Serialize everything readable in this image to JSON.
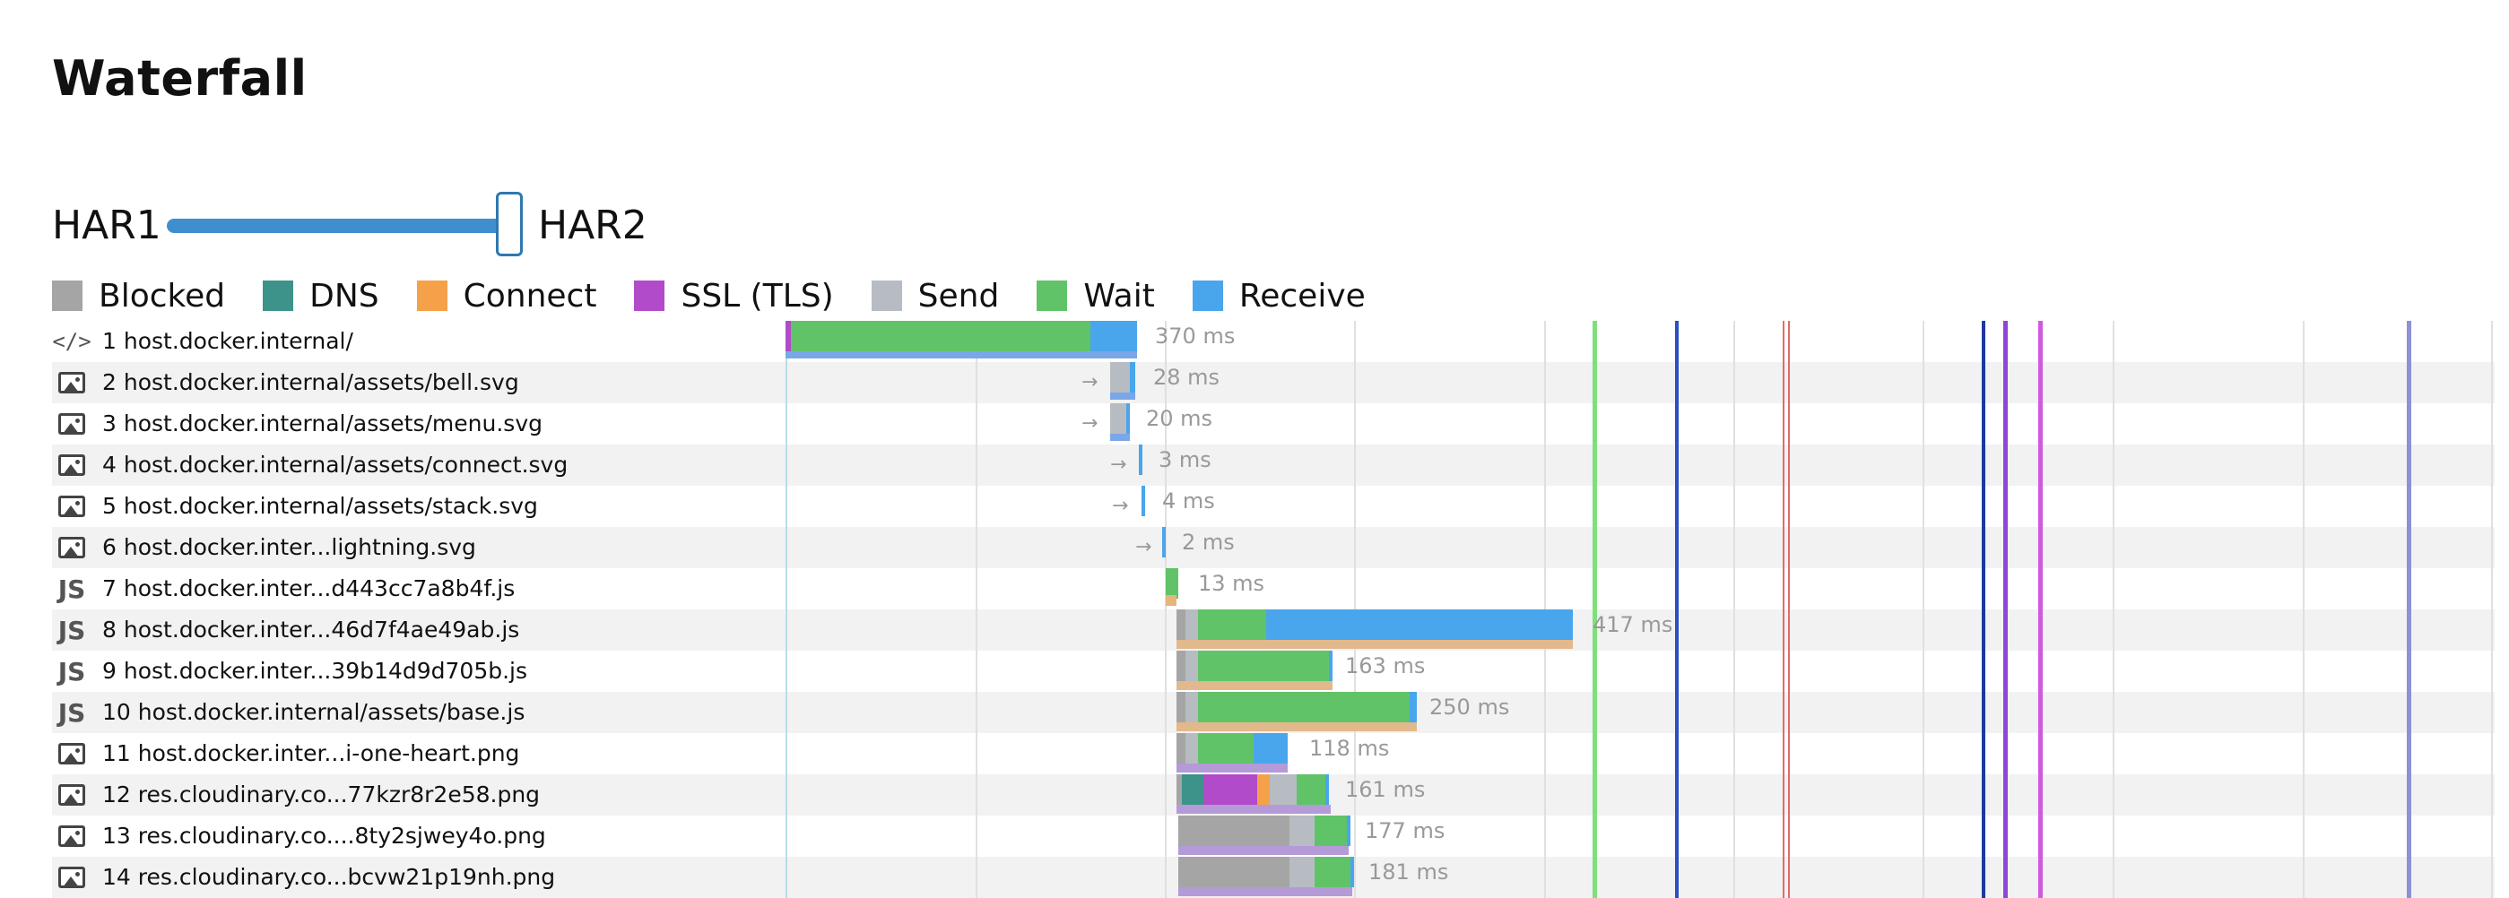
{
  "title": "Waterfall",
  "slider": {
    "left_label": "HAR1",
    "right_label": "HAR2",
    "value": 1
  },
  "legend": [
    {
      "label": "Blocked",
      "color": "#a5a5a5"
    },
    {
      "label": "DNS",
      "color": "#3d928a"
    },
    {
      "label": "Connect",
      "color": "#f4a14a"
    },
    {
      "label": "SSL (TLS)",
      "color": "#b24bc9"
    },
    {
      "label": "Send",
      "color": "#b7bcc3"
    },
    {
      "label": "Wait",
      "color": "#61c368"
    },
    {
      "label": "Receive",
      "color": "#49a5ec"
    }
  ],
  "requests": [
    {
      "label": "1 host.docker.internal/",
      "icon": "code-icon",
      "time": "370 ms"
    },
    {
      "label": "2 host.docker.internal/assets/bell.svg",
      "icon": "image-icon",
      "time": "28 ms"
    },
    {
      "label": "3 host.docker.internal/assets/menu.svg",
      "icon": "image-icon",
      "time": "20 ms"
    },
    {
      "label": "4 host.docker.internal/assets/connect.svg",
      "icon": "image-icon",
      "time": "3 ms"
    },
    {
      "label": "5 host.docker.internal/assets/stack.svg",
      "icon": "image-icon",
      "time": "4 ms"
    },
    {
      "label": "6 host.docker.inter...lightning.svg",
      "icon": "image-icon",
      "time": "2 ms"
    },
    {
      "label": "7 host.docker.inter...d443cc7a8b4f.js",
      "icon": "js-icon",
      "icon_text": "JS",
      "time": "13 ms"
    },
    {
      "label": "8 host.docker.inter...46d7f4ae49ab.js",
      "icon": "js-icon",
      "icon_text": "JS",
      "time": "417 ms"
    },
    {
      "label": "9 host.docker.inter...39b14d9d705b.js",
      "icon": "js-icon",
      "icon_text": "JS",
      "time": "163 ms"
    },
    {
      "label": "10 host.docker.internal/assets/base.js",
      "icon": "js-icon",
      "icon_text": "JS",
      "time": "250 ms"
    },
    {
      "label": "11 host.docker.inter...i-one-heart.png",
      "icon": "image-icon",
      "time": "118 ms"
    },
    {
      "label": "12 res.cloudinary.co...77kzr8r2e58.png",
      "icon": "image-icon",
      "time": "161 ms"
    },
    {
      "label": "13 res.cloudinary.co....8ty2sjwey4o.png",
      "icon": "image-icon",
      "time": "177 ms"
    },
    {
      "label": "14 res.cloudinary.co...bcvw21p19nh.png",
      "icon": "image-icon",
      "time": "181 ms"
    }
  ]
}
